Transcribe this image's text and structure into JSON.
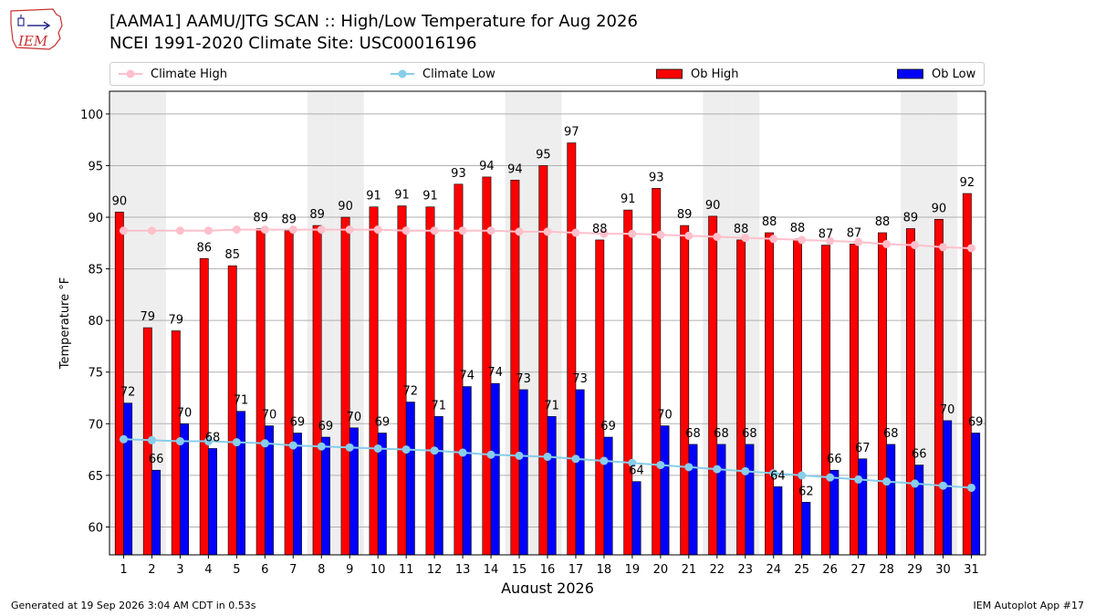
{
  "header": {
    "title": "[AAMA1] AAMU/JTG SCAN :: High/Low Temperature for Aug 2026",
    "subtitle": "NCEI 1991-2020 Climate Site: USC00016196",
    "logo_text": "IEM"
  },
  "footer": {
    "generated": "Generated at 19 Sep 2026 3:04 AM CDT in 0.53s",
    "app": "IEM Autoplot App #17"
  },
  "legend": {
    "climate_high": "Climate High",
    "climate_low": "Climate Low",
    "ob_high": "Ob High",
    "ob_low": "Ob Low"
  },
  "colors": {
    "ob_high": "#ff0000",
    "ob_low": "#0000ff",
    "climate_high": "#ffc0cb",
    "climate_low": "#87ceeb",
    "weekend_shade": "#eeeeee"
  },
  "chart_data": {
    "type": "bar",
    "xlabel": "August 2026",
    "ylabel": "Temperature °F",
    "ylim": [
      57.3,
      102.2
    ],
    "yticks": [
      60,
      65,
      70,
      75,
      80,
      85,
      90,
      95,
      100
    ],
    "grid": true,
    "legend_position": "top",
    "categories": [
      "1",
      "2",
      "3",
      "4",
      "5",
      "6",
      "7",
      "8",
      "9",
      "10",
      "11",
      "12",
      "13",
      "14",
      "15",
      "16",
      "17",
      "18",
      "19",
      "20",
      "21",
      "22",
      "23",
      "24",
      "25",
      "26",
      "27",
      "28",
      "29",
      "30",
      "31"
    ],
    "shaded_days": [
      "1",
      "2",
      "8",
      "9",
      "15",
      "16",
      "22",
      "23",
      "29",
      "30"
    ],
    "series": [
      {
        "name": "Ob High",
        "kind": "bar",
        "values": [
          90.5,
          79.3,
          79.0,
          86.0,
          85.3,
          88.9,
          88.7,
          89.2,
          90.0,
          91.0,
          91.1,
          91.0,
          93.2,
          93.9,
          93.6,
          95.0,
          97.2,
          87.8,
          90.7,
          92.8,
          89.2,
          90.1,
          87.8,
          88.5,
          87.9,
          87.3,
          87.4,
          88.5,
          88.9,
          89.8,
          92.3
        ],
        "labels": [
          "90",
          "79",
          "79",
          "86",
          "85",
          "89",
          "89",
          "89",
          "90",
          "91",
          "91",
          "91",
          "93",
          "94",
          "94",
          "95",
          "97",
          "88",
          "91",
          "93",
          "89",
          "90",
          "88",
          "88",
          "88",
          "87",
          "87",
          "88",
          "89",
          "90",
          "92"
        ]
      },
      {
        "name": "Ob Low",
        "kind": "bar",
        "values": [
          72.0,
          65.5,
          70.0,
          67.6,
          71.2,
          69.8,
          69.1,
          68.7,
          69.6,
          69.1,
          72.1,
          70.7,
          73.6,
          73.9,
          73.3,
          70.7,
          73.3,
          68.7,
          64.4,
          69.8,
          68.0,
          68.0,
          68.0,
          63.9,
          62.4,
          65.5,
          66.6,
          68.0,
          66.0,
          70.3,
          69.1
        ],
        "labels": [
          "72",
          "66",
          "70",
          "68",
          "71",
          "70",
          "69",
          "69",
          "70",
          "69",
          "72",
          "71",
          "74",
          "74",
          "73",
          "71",
          "73",
          "69",
          "64",
          "70",
          "68",
          "68",
          "68",
          "64",
          "62",
          "66",
          "67",
          "68",
          "66",
          "70",
          "69"
        ]
      },
      {
        "name": "Climate High",
        "kind": "line",
        "values": [
          88.7,
          88.7,
          88.7,
          88.7,
          88.8,
          88.8,
          88.8,
          88.8,
          88.8,
          88.8,
          88.7,
          88.7,
          88.7,
          88.7,
          88.6,
          88.6,
          88.5,
          88.4,
          88.4,
          88.3,
          88.2,
          88.1,
          88.0,
          87.9,
          87.8,
          87.7,
          87.6,
          87.4,
          87.3,
          87.1,
          87.0
        ]
      },
      {
        "name": "Climate Low",
        "kind": "line",
        "values": [
          68.5,
          68.4,
          68.3,
          68.3,
          68.2,
          68.1,
          67.9,
          67.8,
          67.7,
          67.6,
          67.5,
          67.4,
          67.2,
          67.0,
          66.9,
          66.8,
          66.6,
          66.4,
          66.2,
          66.0,
          65.8,
          65.6,
          65.4,
          65.2,
          65.0,
          64.8,
          64.6,
          64.4,
          64.2,
          64.0,
          63.8
        ]
      }
    ]
  }
}
